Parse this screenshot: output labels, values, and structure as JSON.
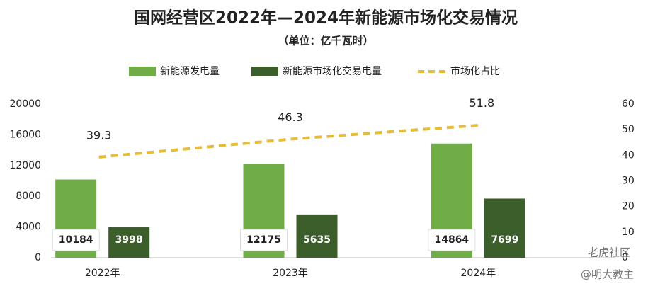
{
  "chart_data": {
    "type": "bar",
    "title": "国网经营区2022年—2024年新能源市场化交易情况",
    "subtitle": "（单位：亿千瓦时）",
    "categories": [
      "2022年",
      "2023年",
      "2024年"
    ],
    "series": [
      {
        "name": "新能源发电量",
        "color": "#70ad47",
        "values": [
          10184,
          12175,
          14864
        ]
      },
      {
        "name": "新能源市场化交易电量",
        "color": "#3b5e2b",
        "values": [
          3998,
          5635,
          7699
        ]
      },
      {
        "name": "市场化占比",
        "color": "#e6bd3a",
        "type": "line",
        "axis": "y2",
        "values": [
          39.3,
          46.3,
          51.8
        ]
      }
    ],
    "ylim": [
      0,
      20000
    ],
    "yticks": [
      0,
      4000,
      8000,
      12000,
      16000,
      20000
    ],
    "y2lim": [
      0,
      60
    ],
    "y2ticks": [
      0,
      10,
      20,
      30,
      40,
      50,
      60
    ],
    "legend": "top",
    "watermarks": [
      "老虎社区",
      "@明大教主"
    ]
  }
}
